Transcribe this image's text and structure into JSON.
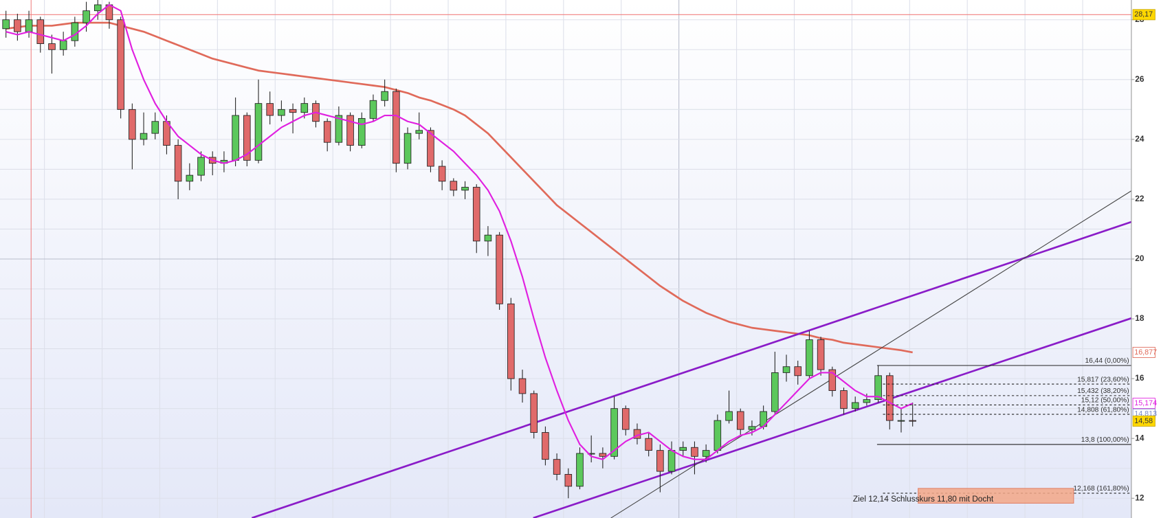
{
  "chart_data": {
    "type": "candlestick",
    "xlim": [
      -0.52,
      98.06
    ],
    "ylim": [
      11.34,
      28.66
    ],
    "yticks": [
      12,
      14,
      16,
      18,
      20,
      22,
      24,
      26,
      28
    ],
    "ygrid": [
      12,
      13,
      14,
      15,
      16,
      17,
      18,
      19,
      20,
      21,
      22,
      23,
      24,
      25,
      26,
      27,
      28
    ],
    "grid": true,
    "up_color": "#5cc85c",
    "down_color": "#e06a6a",
    "candles": [
      [
        27.7,
        28.3,
        27.4,
        28.0
      ],
      [
        28.0,
        28.2,
        27.3,
        27.6
      ],
      [
        27.6,
        28.3,
        27.4,
        28.0
      ],
      [
        28.0,
        28.1,
        26.9,
        27.2
      ],
      [
        27.2,
        27.5,
        26.2,
        27.0
      ],
      [
        27.0,
        27.6,
        26.8,
        27.3
      ],
      [
        27.3,
        28.1,
        27.1,
        27.9
      ],
      [
        27.9,
        28.6,
        27.6,
        28.3
      ],
      [
        28.3,
        28.7,
        28.0,
        28.5
      ],
      [
        28.5,
        28.6,
        27.7,
        28.0
      ],
      [
        28.0,
        28.1,
        24.7,
        25.0
      ],
      [
        25.0,
        25.2,
        23.0,
        24.0
      ],
      [
        24.0,
        24.9,
        23.8,
        24.2
      ],
      [
        24.2,
        24.9,
        24.0,
        24.6
      ],
      [
        24.6,
        24.8,
        23.5,
        23.8
      ],
      [
        23.8,
        24.0,
        22.0,
        22.6
      ],
      [
        22.6,
        23.2,
        22.3,
        22.8
      ],
      [
        22.8,
        23.6,
        22.6,
        23.4
      ],
      [
        23.4,
        23.6,
        22.8,
        23.2
      ],
      [
        23.2,
        23.6,
        22.9,
        23.3
      ],
      [
        23.3,
        25.4,
        23.1,
        24.8
      ],
      [
        24.8,
        24.9,
        23.1,
        23.3
      ],
      [
        23.3,
        26.0,
        23.2,
        25.2
      ],
      [
        25.2,
        25.6,
        24.5,
        24.8
      ],
      [
        24.8,
        25.3,
        24.6,
        25.0
      ],
      [
        25.0,
        25.2,
        24.2,
        24.9
      ],
      [
        24.9,
        25.4,
        24.7,
        25.2
      ],
      [
        25.2,
        25.3,
        24.4,
        24.6
      ],
      [
        24.6,
        24.7,
        23.6,
        23.9
      ],
      [
        23.9,
        25.1,
        23.8,
        24.8
      ],
      [
        24.8,
        24.9,
        23.6,
        23.8
      ],
      [
        23.8,
        24.9,
        23.7,
        24.7
      ],
      [
        24.7,
        25.5,
        24.6,
        25.3
      ],
      [
        25.3,
        26.0,
        25.1,
        25.6
      ],
      [
        25.6,
        25.7,
        22.9,
        23.2
      ],
      [
        23.2,
        24.4,
        23.0,
        24.2
      ],
      [
        24.2,
        24.9,
        24.0,
        24.3
      ],
      [
        24.3,
        24.4,
        22.9,
        23.1
      ],
      [
        23.1,
        23.3,
        22.3,
        22.6
      ],
      [
        22.6,
        22.7,
        22.1,
        22.3
      ],
      [
        22.3,
        22.6,
        22.0,
        22.4
      ],
      [
        22.4,
        22.5,
        20.2,
        20.6
      ],
      [
        20.6,
        21.1,
        20.1,
        20.8
      ],
      [
        20.8,
        20.9,
        18.3,
        18.5
      ],
      [
        18.5,
        18.7,
        15.6,
        16.0
      ],
      [
        16.0,
        16.3,
        15.2,
        15.5
      ],
      [
        15.5,
        15.6,
        14.0,
        14.2
      ],
      [
        14.2,
        14.4,
        13.1,
        13.3
      ],
      [
        13.3,
        13.5,
        12.6,
        12.8
      ],
      [
        12.8,
        13.0,
        12.0,
        12.4
      ],
      [
        12.4,
        13.7,
        12.3,
        13.5
      ],
      [
        13.5,
        14.1,
        13.2,
        13.5
      ],
      [
        13.5,
        13.7,
        13.0,
        13.4
      ],
      [
        13.4,
        15.4,
        13.3,
        15.0
      ],
      [
        15.0,
        15.1,
        14.1,
        14.3
      ],
      [
        14.3,
        14.5,
        13.8,
        14.0
      ],
      [
        14.0,
        14.2,
        13.4,
        13.6
      ],
      [
        13.6,
        13.8,
        12.2,
        12.9
      ],
      [
        12.9,
        13.9,
        12.8,
        13.6
      ],
      [
        13.6,
        13.9,
        13.4,
        13.7
      ],
      [
        13.7,
        13.9,
        12.8,
        13.4
      ],
      [
        13.4,
        13.8,
        13.2,
        13.6
      ],
      [
        13.6,
        14.8,
        13.5,
        14.6
      ],
      [
        14.6,
        15.6,
        14.5,
        14.9
      ],
      [
        14.9,
        15.0,
        14.1,
        14.3
      ],
      [
        14.3,
        14.6,
        14.1,
        14.4
      ],
      [
        14.4,
        15.1,
        14.3,
        14.9
      ],
      [
        14.9,
        16.9,
        14.8,
        16.2
      ],
      [
        16.2,
        16.8,
        15.9,
        16.4
      ],
      [
        16.4,
        16.6,
        15.8,
        16.1
      ],
      [
        16.1,
        17.6,
        16.0,
        17.3
      ],
      [
        17.3,
        17.4,
        16.1,
        16.3
      ],
      [
        16.3,
        16.4,
        15.4,
        15.6
      ],
      [
        15.6,
        15.7,
        14.8,
        15.0
      ],
      [
        15.0,
        15.4,
        14.9,
        15.2
      ],
      [
        15.2,
        15.5,
        15.1,
        15.3
      ],
      [
        15.3,
        16.44,
        15.2,
        16.1
      ],
      [
        16.1,
        16.2,
        14.3,
        14.6
      ],
      [
        14.6,
        15.0,
        14.2,
        14.6
      ],
      [
        14.6,
        15.2,
        14.4,
        14.58
      ]
    ],
    "ma_long": {
      "color": "#e06a5a",
      "values": [
        27.7,
        27.75,
        27.8,
        27.8,
        27.8,
        27.85,
        27.9,
        27.9,
        27.9,
        27.9,
        27.8,
        27.7,
        27.6,
        27.45,
        27.3,
        27.15,
        27.0,
        26.85,
        26.7,
        26.6,
        26.5,
        26.4,
        26.3,
        26.25,
        26.2,
        26.15,
        26.1,
        26.05,
        26.0,
        25.95,
        25.9,
        25.85,
        25.8,
        25.75,
        25.65,
        25.55,
        25.4,
        25.3,
        25.15,
        25.0,
        24.8,
        24.5,
        24.2,
        23.8,
        23.4,
        23.0,
        22.6,
        22.2,
        21.8,
        21.5,
        21.2,
        20.9,
        20.6,
        20.3,
        20.0,
        19.7,
        19.4,
        19.1,
        18.85,
        18.6,
        18.4,
        18.2,
        18.05,
        17.9,
        17.8,
        17.7,
        17.65,
        17.6,
        17.55,
        17.5,
        17.45,
        17.35,
        17.3,
        17.2,
        17.15,
        17.1,
        17.05,
        17.0,
        16.95,
        16.877
      ]
    },
    "ma_short": {
      "color": "#e020e0",
      "values": [
        27.6,
        27.5,
        27.6,
        27.5,
        27.4,
        27.3,
        27.5,
        27.8,
        28.2,
        28.5,
        28.3,
        27.0,
        26.0,
        25.2,
        24.6,
        24.1,
        23.8,
        23.5,
        23.3,
        23.2,
        23.3,
        23.5,
        23.8,
        24.1,
        24.4,
        24.6,
        24.8,
        24.9,
        24.8,
        24.7,
        24.6,
        24.5,
        24.6,
        24.8,
        24.8,
        24.6,
        24.5,
        24.2,
        23.9,
        23.6,
        23.2,
        22.8,
        22.3,
        21.6,
        20.6,
        19.4,
        18.0,
        16.7,
        15.6,
        14.6,
        13.8,
        13.4,
        13.3,
        13.6,
        13.9,
        14.1,
        14.2,
        13.9,
        13.6,
        13.4,
        13.3,
        13.3,
        13.6,
        13.9,
        14.1,
        14.2,
        14.4,
        14.8,
        15.2,
        15.6,
        16.0,
        16.2,
        16.2,
        15.9,
        15.6,
        15.4,
        15.4,
        15.2,
        15.0,
        15.174
      ]
    },
    "trendlines": [
      {
        "color": "#8a1cc8",
        "width": 2.5,
        "from": [
          21.42,
          11.34
        ],
        "to": [
          98.06,
          21.24
        ]
      },
      {
        "color": "#8a1cc8",
        "width": 2.5,
        "from": [
          45.94,
          11.34
        ],
        "to": [
          98.06,
          18.02
        ]
      },
      {
        "color": "#444444",
        "width": 1,
        "from": [
          52.71,
          11.34
        ],
        "to": [
          98.06,
          22.28
        ]
      }
    ],
    "crosshair": {
      "color": "#f08080",
      "x": 2.19,
      "y": 28.17
    },
    "fib_start": 75.9,
    "fib_levels": [
      {
        "value": 16.44,
        "label": "16,44 (0,00%)",
        "style": "solid"
      },
      {
        "value": 15.817,
        "label": "15,817 (23,60%)",
        "style": "dashed"
      },
      {
        "value": 15.432,
        "label": "15,432 (38,20%)",
        "style": "dashed"
      },
      {
        "value": 15.12,
        "label": "15,12 (50,00%)",
        "style": "dashed"
      },
      {
        "value": 14.808,
        "label": "14,808 (61,80%)",
        "style": "dashed"
      },
      {
        "value": 13.8,
        "label": "13,8 (100,00%)",
        "style": "solid"
      },
      {
        "value": 12.168,
        "label": "12,168 (161,80%)",
        "style": "dashed"
      }
    ],
    "price_tags": [
      {
        "value": 28.17,
        "label": "28,17",
        "bg": "#ffd700",
        "fg": "#333333"
      },
      {
        "value": 16.877,
        "label": "16,877",
        "bg": "#ffffff",
        "fg": "#e06a5a"
      },
      {
        "value": 15.174,
        "label": "15,174",
        "bg": "#ffffff",
        "fg": "#e020e0"
      },
      {
        "value": 14.813,
        "label": "14,813",
        "bg": "#ffffff",
        "fg": "#7a8ac8"
      },
      {
        "value": 14.58,
        "label": "14,58",
        "bg": "#ffd700",
        "fg": "#333333"
      }
    ],
    "annotation": "Ziel 12,14 Schlusskurs 11,80 mit Docht"
  }
}
